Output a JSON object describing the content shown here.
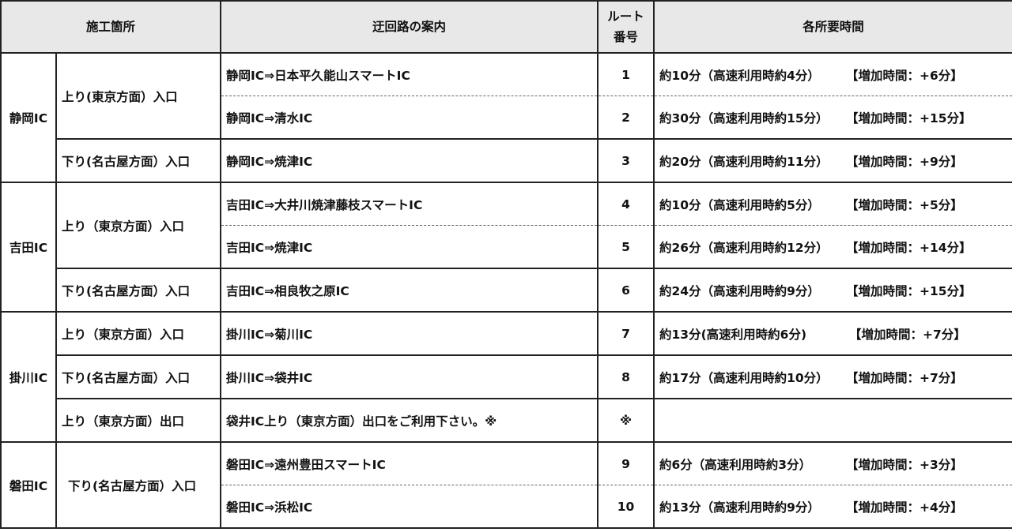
{
  "headers": {
    "location": "施工箇所",
    "detour": "迂回路の案内",
    "route_no_line1": "ルート",
    "route_no_line2": "番号",
    "time": "各所要時間"
  },
  "groups": [
    {
      "ic": "静岡IC",
      "dirs": [
        "上り(東京方面）入口",
        "下り(名古屋方面）入口"
      ]
    },
    {
      "ic": "吉田IC",
      "dirs": [
        "上り（東京方面）入口",
        "下り(名古屋方面）入口"
      ]
    },
    {
      "ic": "掛川IC",
      "dirs": [
        "上り（東京方面）入口",
        "下り(名古屋方面）入口",
        "上り（東京方面）出口"
      ]
    },
    {
      "ic": "磐田IC",
      "dirs": [
        "下り(名古屋方面）入口"
      ]
    }
  ],
  "rows": [
    {
      "route": "静岡IC⇒日本平久能山スマートIC",
      "no": "1",
      "time": "約10分（高速利用時約4分）",
      "extra": "【増加時間：+6分】"
    },
    {
      "route": "静岡IC⇒清水IC",
      "no": "2",
      "time": "約30分（高速利用時約15分）",
      "extra": "【増加時間：+15分】"
    },
    {
      "route": "静岡IC⇒焼津IC",
      "no": "3",
      "time": "約20分（高速利用時約11分）",
      "extra": "【増加時間：+9分】"
    },
    {
      "route": "吉田IC⇒大井川焼津藤枝スマートIC",
      "no": "4",
      "time": "約10分（高速利用時約5分）",
      "extra": "【増加時間：+5分】"
    },
    {
      "route": "吉田IC⇒焼津IC",
      "no": "5",
      "time": "約26分（高速利用時約12分）",
      "extra": "【増加時間：+14分】"
    },
    {
      "route": "吉田IC⇒相良牧之原IC",
      "no": "6",
      "time": "約24分（高速利用時約9分）",
      "extra": "【増加時間：+15分】"
    },
    {
      "route": "掛川IC⇒菊川IC",
      "no": "7",
      "time": "約13分(高速利用時約6分)",
      "extra": "【増加時間：+7分】"
    },
    {
      "route": "掛川IC⇒袋井IC",
      "no": "8",
      "time": "約17分（高速利用時約10分）",
      "extra": "【増加時間：+7分】"
    },
    {
      "route": "袋井IC上り（東京方面）出口をご利用下さい。※",
      "no": "※",
      "time": "",
      "extra": ""
    },
    {
      "route": "磐田IC⇒遠州豊田スマートIC",
      "no": "9",
      "time": "約6分（高速利用時約3分）",
      "extra": "【増加時間：+3分】"
    },
    {
      "route": "磐田IC⇒浜松IC",
      "no": "10",
      "time": "約13分（高速利用時約9分）",
      "extra": "【増加時間：+4分】"
    }
  ]
}
